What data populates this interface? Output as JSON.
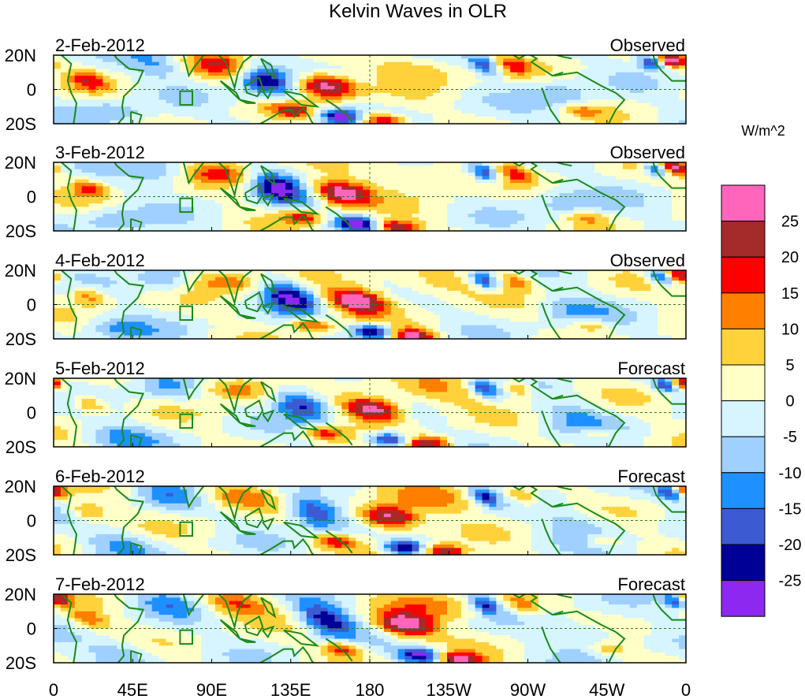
{
  "chart_data": {
    "type": "heatmap",
    "title": "Kelvin Waves in OLR",
    "colorbar": {
      "units": "W/m^2",
      "colors": [
        "#ff66bb",
        "#a52a2a",
        "#ff0000",
        "#ff7f00",
        "#ffd23c",
        "#ffffc8",
        "#d6f5ff",
        "#a0d0ff",
        "#1e90ff",
        "#3c5ad2",
        "#000096",
        "#8c28f0"
      ],
      "tick_labels": [
        "25",
        "20",
        "15",
        "10",
        "5",
        "0",
        "-5",
        "-10",
        "-15",
        "-20",
        "-25"
      ]
    },
    "x_tick_labels": [
      "0",
      "45E",
      "90E",
      "135E",
      "180",
      "135W",
      "90W",
      "45W",
      "0"
    ],
    "y_tick_labels": [
      "20N",
      "0",
      "20S"
    ],
    "panels": [
      {
        "date": "2-Feb-2012",
        "kind": "Observed",
        "phase": 0
      },
      {
        "date": "3-Feb-2012",
        "kind": "Observed",
        "phase": 1
      },
      {
        "date": "4-Feb-2012",
        "kind": "Observed",
        "phase": 2
      },
      {
        "date": "5-Feb-2012",
        "kind": "Forecast",
        "phase": 3
      },
      {
        "date": "6-Feb-2012",
        "kind": "Forecast",
        "phase": 4
      },
      {
        "date": "7-Feb-2012",
        "kind": "Forecast",
        "phase": 5
      }
    ]
  }
}
